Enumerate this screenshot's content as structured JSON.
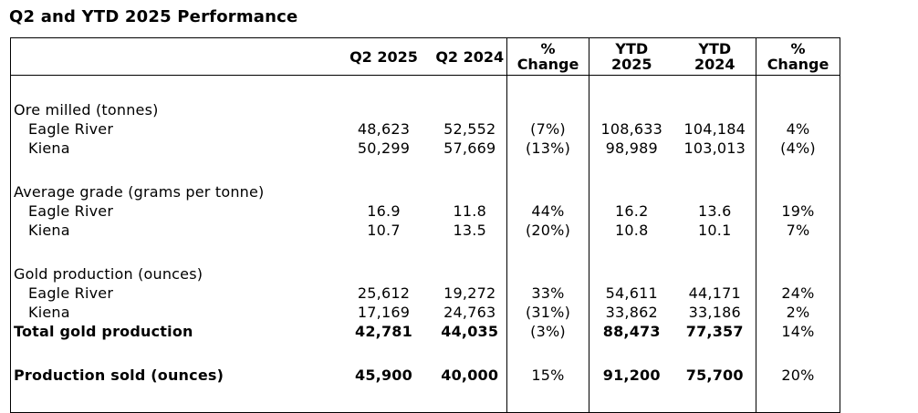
{
  "title": "Q2 and YTD 2025 Performance",
  "colors": {
    "text": "#000000",
    "border": "#000000",
    "background": "#ffffff"
  },
  "table": {
    "columns": [
      "",
      "Q2 2025",
      "Q2 2024",
      "%\nChange",
      "YTD\n2025",
      "YTD\n2024",
      "%\nChange"
    ],
    "rows": [
      {
        "type": "blank"
      },
      {
        "type": "section",
        "label": "Ore milled (tonnes)"
      },
      {
        "type": "data",
        "indent": true,
        "label": "Eagle River",
        "values": [
          "48,623",
          "52,552",
          "(7%)",
          "108,633",
          "104,184",
          "4%"
        ]
      },
      {
        "type": "data",
        "indent": true,
        "label": "Kiena",
        "values": [
          "50,299",
          "57,669",
          "(13%)",
          "98,989",
          "103,013",
          "(4%)"
        ]
      },
      {
        "type": "blank"
      },
      {
        "type": "section",
        "label": "Average grade (grams per tonne)"
      },
      {
        "type": "data",
        "indent": true,
        "label": "Eagle River",
        "values": [
          "16.9",
          "11.8",
          "44%",
          "16.2",
          "13.6",
          "19%"
        ]
      },
      {
        "type": "data",
        "indent": true,
        "label": "Kiena",
        "values": [
          "10.7",
          "13.5",
          "(20%)",
          "10.8",
          "10.1",
          "7%"
        ]
      },
      {
        "type": "blank"
      },
      {
        "type": "section",
        "label": "Gold production (ounces)"
      },
      {
        "type": "data",
        "indent": true,
        "label": "Eagle River",
        "values": [
          "25,612",
          "19,272",
          "33%",
          "54,611",
          "44,171",
          "24%"
        ]
      },
      {
        "type": "data",
        "indent": true,
        "label": "Kiena",
        "values": [
          "17,169",
          "24,763",
          "(31%)",
          "33,862",
          "33,186",
          "2%"
        ]
      },
      {
        "type": "total",
        "label": "Total gold production",
        "values": [
          "42,781",
          "44,035",
          "(3%)",
          "88,473",
          "77,357",
          "14%"
        ],
        "bold_mask": [
          1,
          1,
          0,
          1,
          1,
          0
        ]
      },
      {
        "type": "blank"
      },
      {
        "type": "total",
        "label": "Production sold (ounces)",
        "values": [
          "45,900",
          "40,000",
          "15%",
          "91,200",
          "75,700",
          "20%"
        ],
        "bold_mask": [
          1,
          1,
          0,
          1,
          1,
          0
        ]
      },
      {
        "type": "filler"
      }
    ]
  }
}
